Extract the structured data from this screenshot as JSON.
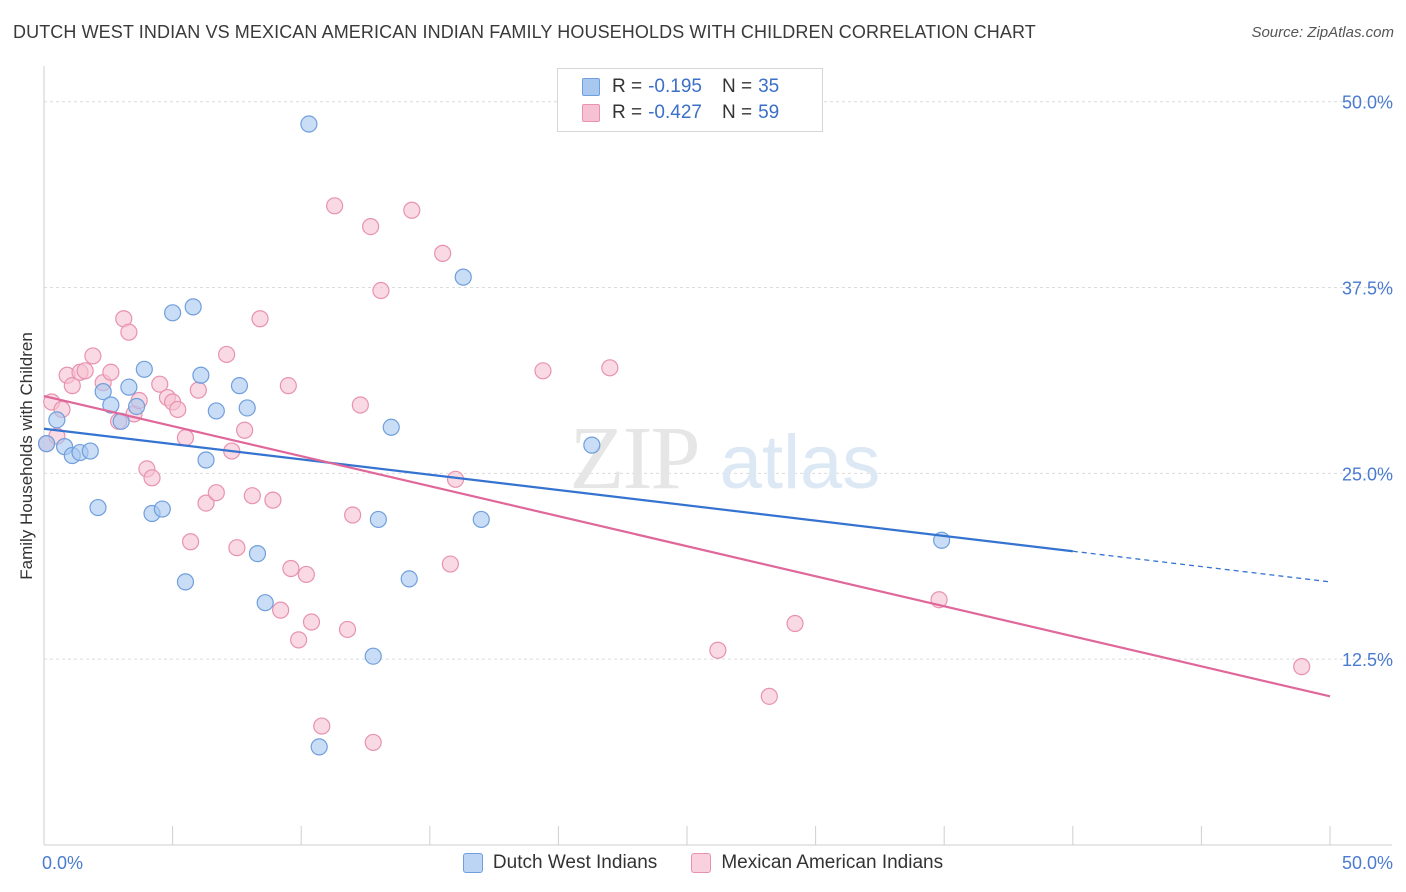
{
  "header": {
    "title": "DUTCH WEST INDIAN VS MEXICAN AMERICAN INDIAN FAMILY HOUSEHOLDS WITH CHILDREN CORRELATION CHART",
    "source": "Source: ZipAtlas.com"
  },
  "watermark": {
    "zip": "ZIP",
    "atlas": "atlas"
  },
  "legend_stats": [
    {
      "r_label": "R =",
      "r_value": "-0.195",
      "n_label": "N =",
      "n_value": "35"
    },
    {
      "r_label": "R =",
      "r_value": "-0.427",
      "n_label": "N =",
      "n_value": "59"
    }
  ],
  "colors": {
    "blue_fill": "#a9c8f0",
    "blue_stroke": "#6f9fdc",
    "blue_line": "#3573d1",
    "pink_fill": "#f6c1d2",
    "pink_stroke": "#e892b0",
    "pink_line": "#e0679a",
    "tick_text": "#4a7bd0",
    "grid": "#dcdcdc"
  },
  "chart_data": {
    "type": "scatter",
    "title": "DUTCH WEST INDIAN VS MEXICAN AMERICAN INDIAN FAMILY HOUSEHOLDS WITH CHILDREN CORRELATION CHART",
    "xlabel": "",
    "ylabel": "Family Households with Children",
    "xlim": [
      0,
      50
    ],
    "ylim": [
      0,
      52
    ],
    "x_tick_labels": [
      "0.0%",
      "50.0%"
    ],
    "y_ticks": [
      12.5,
      25.0,
      37.5,
      50.0
    ],
    "y_tick_labels": [
      "12.5%",
      "25.0%",
      "37.5%",
      "50.0%"
    ],
    "grid": true,
    "legend": "bottom-center",
    "series": [
      {
        "name": "Dutch West Indians",
        "r": -0.195,
        "n": 35,
        "trend": {
          "x0": 0,
          "y0": 28.0,
          "x1": 50,
          "y1": 17.7,
          "solid_until_x": 40.0
        },
        "points": [
          [
            0.1,
            27.0
          ],
          [
            0.5,
            28.6
          ],
          [
            0.8,
            26.8
          ],
          [
            1.1,
            26.2
          ],
          [
            1.4,
            26.4
          ],
          [
            1.8,
            26.5
          ],
          [
            2.1,
            22.7
          ],
          [
            2.3,
            30.5
          ],
          [
            2.6,
            29.6
          ],
          [
            3.0,
            28.5
          ],
          [
            3.3,
            30.8
          ],
          [
            3.6,
            29.5
          ],
          [
            3.9,
            32.0
          ],
          [
            4.2,
            22.3
          ],
          [
            4.6,
            22.6
          ],
          [
            5.0,
            35.8
          ],
          [
            5.5,
            17.7
          ],
          [
            5.8,
            36.2
          ],
          [
            6.1,
            31.6
          ],
          [
            6.3,
            25.9
          ],
          [
            6.7,
            29.2
          ],
          [
            7.6,
            30.9
          ],
          [
            7.9,
            29.4
          ],
          [
            8.3,
            19.6
          ],
          [
            8.6,
            16.3
          ],
          [
            10.3,
            48.5
          ],
          [
            10.7,
            6.6
          ],
          [
            12.8,
            12.7
          ],
          [
            13.0,
            21.9
          ],
          [
            13.5,
            28.1
          ],
          [
            14.2,
            17.9
          ],
          [
            16.3,
            38.2
          ],
          [
            17.0,
            21.9
          ],
          [
            21.3,
            26.9
          ],
          [
            34.9,
            20.5
          ]
        ]
      },
      {
        "name": "Mexican American Indians",
        "r": -0.427,
        "n": 59,
        "trend": {
          "x0": 0,
          "y0": 30.2,
          "x1": 50,
          "y1": 10.0
        },
        "points": [
          [
            0.1,
            27.0
          ],
          [
            0.3,
            29.8
          ],
          [
            0.5,
            27.5
          ],
          [
            0.7,
            29.3
          ],
          [
            0.9,
            31.6
          ],
          [
            1.1,
            30.9
          ],
          [
            1.4,
            31.8
          ],
          [
            1.6,
            31.9
          ],
          [
            1.9,
            32.9
          ],
          [
            2.3,
            31.1
          ],
          [
            2.6,
            31.8
          ],
          [
            2.9,
            28.5
          ],
          [
            3.1,
            35.4
          ],
          [
            3.3,
            34.5
          ],
          [
            3.5,
            29.0
          ],
          [
            3.7,
            29.9
          ],
          [
            4.0,
            25.3
          ],
          [
            4.2,
            24.7
          ],
          [
            4.5,
            31.0
          ],
          [
            4.8,
            30.1
          ],
          [
            5.0,
            29.8
          ],
          [
            5.2,
            29.3
          ],
          [
            5.5,
            27.4
          ],
          [
            5.7,
            20.4
          ],
          [
            6.0,
            30.6
          ],
          [
            6.3,
            23.0
          ],
          [
            6.7,
            23.7
          ],
          [
            7.1,
            33.0
          ],
          [
            7.3,
            26.5
          ],
          [
            7.5,
            20.0
          ],
          [
            7.8,
            27.9
          ],
          [
            8.1,
            23.5
          ],
          [
            8.4,
            35.4
          ],
          [
            8.9,
            23.2
          ],
          [
            9.2,
            15.8
          ],
          [
            9.5,
            30.9
          ],
          [
            9.6,
            18.6
          ],
          [
            9.9,
            13.8
          ],
          [
            10.2,
            18.2
          ],
          [
            10.4,
            15.0
          ],
          [
            10.8,
            8.0
          ],
          [
            11.3,
            43.0
          ],
          [
            11.8,
            14.5
          ],
          [
            12.0,
            22.2
          ],
          [
            12.3,
            29.6
          ],
          [
            12.7,
            41.6
          ],
          [
            12.8,
            6.9
          ],
          [
            13.1,
            37.3
          ],
          [
            14.3,
            42.7
          ],
          [
            15.5,
            39.8
          ],
          [
            15.8,
            18.9
          ],
          [
            16.0,
            24.6
          ],
          [
            19.4,
            31.9
          ],
          [
            22.0,
            32.1
          ],
          [
            26.2,
            13.1
          ],
          [
            28.2,
            10.0
          ],
          [
            29.2,
            14.9
          ],
          [
            34.8,
            16.5
          ],
          [
            48.9,
            12.0
          ]
        ]
      }
    ]
  }
}
